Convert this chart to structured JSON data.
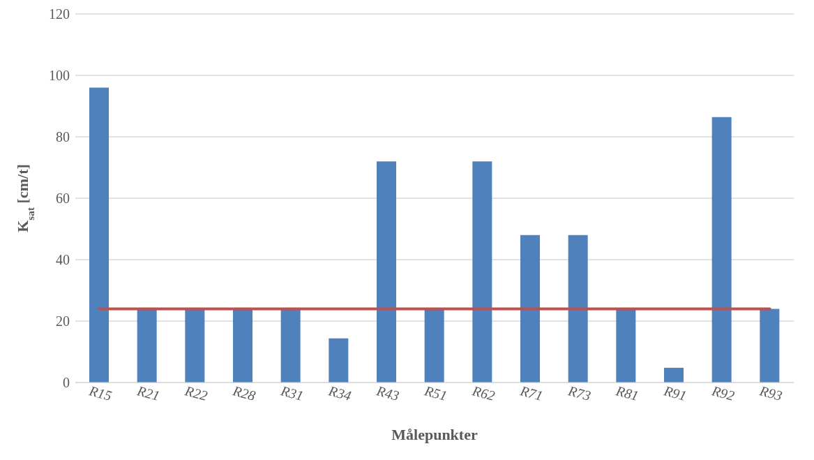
{
  "chart_data": {
    "type": "bar",
    "xlabel": "Målepunkter",
    "ylabel": "K$_{sat}$ [cm/t]",
    "categories": [
      "R15",
      "R21",
      "R22",
      "R28",
      "R31",
      "R34",
      "R43",
      "R51",
      "R62",
      "R71",
      "R73",
      "R81",
      "R91",
      "R92",
      "R93"
    ],
    "series": [
      {
        "color": "#4f81bd",
        "values": [
          96,
          24,
          24,
          24,
          24,
          14.4,
          72,
          24,
          72,
          48,
          48,
          24,
          4.8,
          86.4,
          24
        ]
      },
      {
        "type": "line",
        "color": "#c0504d",
        "values": [
          24,
          24,
          24,
          24,
          24,
          24,
          24,
          24,
          24,
          24,
          24,
          24,
          24,
          24,
          24
        ]
      }
    ],
    "ylim": [
      0,
      120
    ],
    "yticks": [
      0,
      20,
      40,
      60,
      80,
      100,
      120
    ],
    "grid": "y",
    "legend": false
  }
}
